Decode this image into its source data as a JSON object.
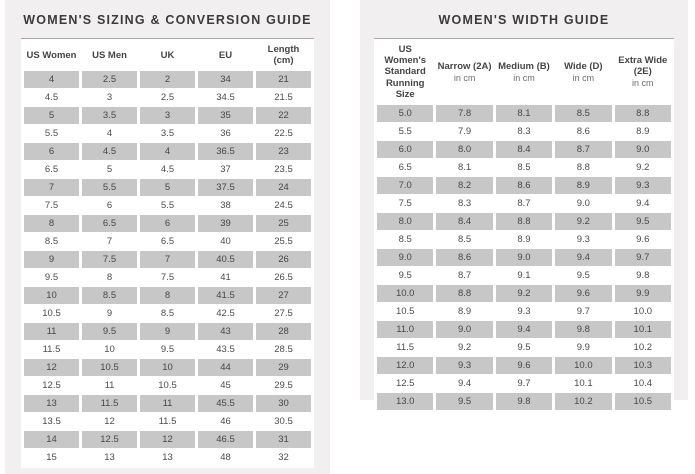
{
  "chart_data": [
    {
      "type": "table",
      "title": "WOMEN'S SIZING & CONVERSION GUIDE",
      "columns": [
        "US Women",
        "US Men",
        "UK",
        "EU",
        "Length (cm)"
      ],
      "rows": [
        [
          "4",
          "2.5",
          "2",
          "34",
          "21"
        ],
        [
          "4.5",
          "3",
          "2.5",
          "34.5",
          "21.5"
        ],
        [
          "5",
          "3.5",
          "3",
          "35",
          "22"
        ],
        [
          "5.5",
          "4",
          "3.5",
          "36",
          "22.5"
        ],
        [
          "6",
          "4.5",
          "4",
          "36.5",
          "23"
        ],
        [
          "6.5",
          "5",
          "4.5",
          "37",
          "23.5"
        ],
        [
          "7",
          "5.5",
          "5",
          "37.5",
          "24"
        ],
        [
          "7.5",
          "6",
          "5.5",
          "38",
          "24.5"
        ],
        [
          "8",
          "6.5",
          "6",
          "39",
          "25"
        ],
        [
          "8.5",
          "7",
          "6.5",
          "40",
          "25.5"
        ],
        [
          "9",
          "7.5",
          "7",
          "40.5",
          "26"
        ],
        [
          "9.5",
          "8",
          "7.5",
          "41",
          "26.5"
        ],
        [
          "10",
          "8.5",
          "8",
          "41.5",
          "27"
        ],
        [
          "10.5",
          "9",
          "8.5",
          "42.5",
          "27.5"
        ],
        [
          "11",
          "9.5",
          "9",
          "43",
          "28"
        ],
        [
          "11.5",
          "10",
          "9.5",
          "43.5",
          "28.5"
        ],
        [
          "12",
          "10.5",
          "10",
          "44",
          "29"
        ],
        [
          "12.5",
          "11",
          "10.5",
          "45",
          "29.5"
        ],
        [
          "13",
          "11.5",
          "11",
          "45.5",
          "30"
        ],
        [
          "13.5",
          "12",
          "11.5",
          "46",
          "30.5"
        ],
        [
          "14",
          "12.5",
          "12",
          "46.5",
          "31"
        ],
        [
          "15",
          "13",
          "13",
          "48",
          "32"
        ]
      ],
      "shading": "odd rows (1st, 3rd, ...) have gray cell background"
    },
    {
      "type": "table",
      "title": "WOMEN'S WIDTH GUIDE",
      "columns": [
        {
          "label": "US Women's Standard Running Size",
          "sub": ""
        },
        {
          "label": "Narrow (2A)",
          "sub": "in cm"
        },
        {
          "label": "Medium (B)",
          "sub": "in cm"
        },
        {
          "label": "Wide (D)",
          "sub": "in cm"
        },
        {
          "label": "Extra Wide (2E)",
          "sub": "in cm"
        }
      ],
      "rows": [
        [
          "5.0",
          "7.8",
          "8.1",
          "8.5",
          "8.8"
        ],
        [
          "5.5",
          "7.9",
          "8.3",
          "8.6",
          "8.9"
        ],
        [
          "6.0",
          "8.0",
          "8.4",
          "8.7",
          "9.0"
        ],
        [
          "6.5",
          "8.1",
          "8.5",
          "8.8",
          "9.2"
        ],
        [
          "7.0",
          "8.2",
          "8.6",
          "8.9",
          "9.3"
        ],
        [
          "7.5",
          "8.3",
          "8.7",
          "9.0",
          "9.4"
        ],
        [
          "8.0",
          "8.4",
          "8.8",
          "9.2",
          "9.5"
        ],
        [
          "8.5",
          "8.5",
          "8.9",
          "9.3",
          "9.6"
        ],
        [
          "9.0",
          "8.6",
          "9.0",
          "9.4",
          "9.7"
        ],
        [
          "9.5",
          "8.7",
          "9.1",
          "9.5",
          "9.8"
        ],
        [
          "10.0",
          "8.8",
          "9.2",
          "9.6",
          "9.9"
        ],
        [
          "10.5",
          "8.9",
          "9.3",
          "9.7",
          "10.0"
        ],
        [
          "11.0",
          "9.0",
          "9.4",
          "9.8",
          "10.1"
        ],
        [
          "11.5",
          "9.2",
          "9.5",
          "9.9",
          "10.2"
        ],
        [
          "12.0",
          "9.3",
          "9.6",
          "10.0",
          "10.3"
        ],
        [
          "12.5",
          "9.4",
          "9.7",
          "10.1",
          "10.4"
        ],
        [
          "13.0",
          "9.5",
          "9.8",
          "10.2",
          "10.5"
        ]
      ],
      "shading": "odd rows (1st, 3rd, ...) have gray cell background"
    }
  ],
  "colors": {
    "panel_bg": "#f1efef",
    "shaded_row": "#c7c7c7",
    "title_text": "#3b3b3b",
    "header_text": "#454545",
    "cell_text": "#4c4c4c",
    "table_border": "#a9a9a9"
  }
}
